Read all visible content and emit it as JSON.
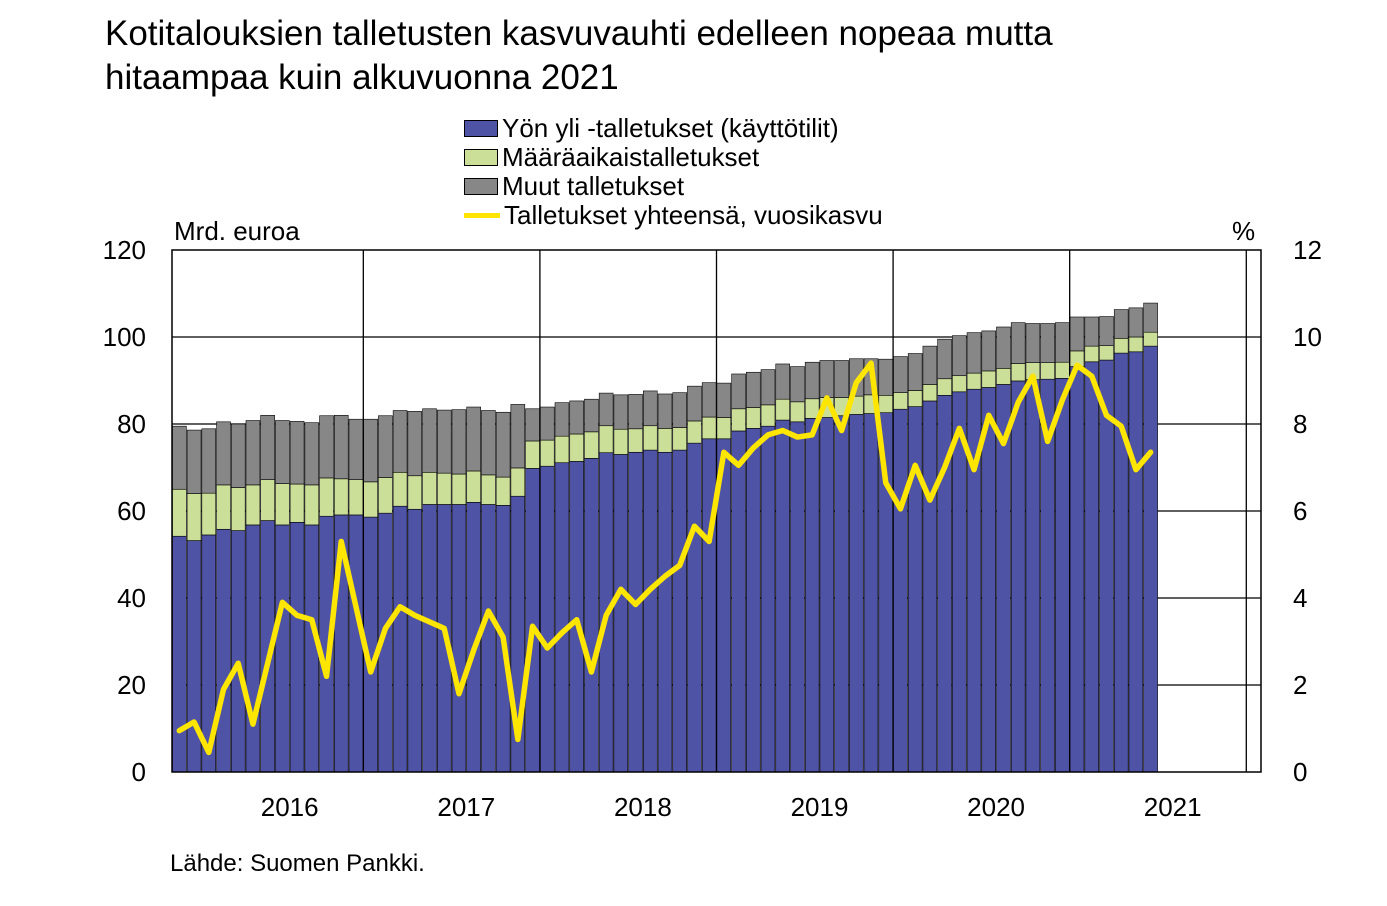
{
  "title_lines": [
    "Kotitalouksien talletusten kasvuvauhti edelleen nopeaa mutta",
    "hitaampaa kuin alkuvuonna 2021"
  ],
  "source": "Lähde: Suomen Pankki.",
  "colors": {
    "overnight": "#4F53A5",
    "fixed_term": "#CCDF98",
    "other": "#878787",
    "growth": "#FFE600"
  },
  "chart_data": {
    "type": "bar",
    "stacked": true,
    "y_left_label": "Mrd. euroa",
    "y_right_label": "%",
    "y_left_lim": [
      0,
      120
    ],
    "y_right_lim": [
      0,
      12
    ],
    "y_left_ticks": [
      0,
      20,
      40,
      60,
      80,
      100,
      120
    ],
    "y_right_ticks": [
      0,
      2,
      4,
      6,
      8,
      10,
      12
    ],
    "x_tick_labels": [
      "2016",
      "2017",
      "2018",
      "2019",
      "2020",
      "2021"
    ],
    "x_start": "2015-11",
    "x_end": "2021-12",
    "grid": true,
    "legend_position": "top",
    "series": [
      {
        "name": "Yön yli -talletukset (käyttötilit)",
        "kind": "bar",
        "values": [
          54.2,
          53.2,
          54.5,
          55.8,
          55.5,
          56.8,
          57.8,
          56.8,
          57.4,
          56.8,
          58.8,
          59.1,
          59.1,
          58.6,
          59.5,
          61.1,
          60.4,
          61.5,
          61.5,
          61.5,
          62.0,
          61.5,
          61.3,
          63.4,
          69.8,
          70.3,
          71.1,
          71.4,
          72.1,
          73.4,
          73.0,
          73.5,
          74.0,
          73.5,
          74.0,
          75.6,
          76.6,
          76.6,
          78.4,
          79.0,
          79.5,
          80.9,
          80.5,
          81.3,
          81.5,
          81.9,
          82.2,
          82.4,
          82.6,
          83.4,
          84.0,
          85.3,
          86.6,
          87.4,
          88.0,
          88.4,
          89.1,
          89.9,
          90.2,
          90.3,
          90.5,
          93.2,
          94.3,
          94.7,
          96.3,
          96.6,
          97.9
        ]
      },
      {
        "name": "Määräaikaistalletukset",
        "kind": "bar",
        "values": [
          10.8,
          10.8,
          9.6,
          10.2,
          9.9,
          9.2,
          9.4,
          9.5,
          8.8,
          9.2,
          8.8,
          8.3,
          8.1,
          8.1,
          8.2,
          7.8,
          7.7,
          7.4,
          7.2,
          7.0,
          7.2,
          6.8,
          6.5,
          6.5,
          6.3,
          6.0,
          6.1,
          6.3,
          6.1,
          6.2,
          5.8,
          5.4,
          5.6,
          5.5,
          5.2,
          5.1,
          5.0,
          4.9,
          5.1,
          4.8,
          4.9,
          4.8,
          4.6,
          4.5,
          4.6,
          4.2,
          4.2,
          4.3,
          4.0,
          3.8,
          3.7,
          3.8,
          3.8,
          3.7,
          3.7,
          3.8,
          3.7,
          4.0,
          3.9,
          3.8,
          3.7,
          3.6,
          3.6,
          3.3,
          3.4,
          3.4,
          3.2
        ]
      },
      {
        "name": "Muut talletukset",
        "kind": "bar",
        "values": [
          14.5,
          14.6,
          14.8,
          14.5,
          14.6,
          14.8,
          14.8,
          14.5,
          14.4,
          14.3,
          14.3,
          14.6,
          13.9,
          14.4,
          14.2,
          14.2,
          14.8,
          14.6,
          14.5,
          14.8,
          14.7,
          14.8,
          14.9,
          14.6,
          7.4,
          7.6,
          7.7,
          7.6,
          7.5,
          7.5,
          7.9,
          7.9,
          8.0,
          7.9,
          8.0,
          8.0,
          7.9,
          7.9,
          8.0,
          8.1,
          8.1,
          8.1,
          8.1,
          8.4,
          8.5,
          8.5,
          8.6,
          8.3,
          8.3,
          8.3,
          8.5,
          8.8,
          9.1,
          9.2,
          9.3,
          9.2,
          9.5,
          9.4,
          9.0,
          9.0,
          9.1,
          7.8,
          6.7,
          6.7,
          6.6,
          6.7,
          6.7
        ]
      },
      {
        "name": "Talletukset yhteensä, vuosikasvu",
        "kind": "line",
        "axis": "right",
        "values": [
          0.95,
          1.15,
          0.45,
          1.9,
          2.5,
          1.1,
          2.5,
          3.9,
          3.6,
          3.5,
          2.2,
          5.3,
          3.8,
          2.3,
          3.3,
          3.8,
          3.6,
          3.45,
          3.3,
          1.8,
          2.8,
          3.7,
          3.1,
          0.75,
          3.35,
          2.85,
          3.2,
          3.5,
          2.3,
          3.6,
          4.2,
          3.85,
          4.2,
          4.5,
          4.75,
          5.65,
          5.3,
          7.35,
          7.05,
          7.45,
          7.75,
          7.85,
          7.7,
          7.75,
          8.6,
          7.85,
          8.95,
          9.4,
          6.65,
          6.05,
          7.05,
          6.25,
          7.0,
          7.9,
          6.95,
          8.2,
          7.55,
          8.5,
          9.1,
          7.6,
          8.55,
          9.35,
          9.1,
          8.2,
          7.95,
          6.95,
          7.35
        ]
      }
    ]
  }
}
